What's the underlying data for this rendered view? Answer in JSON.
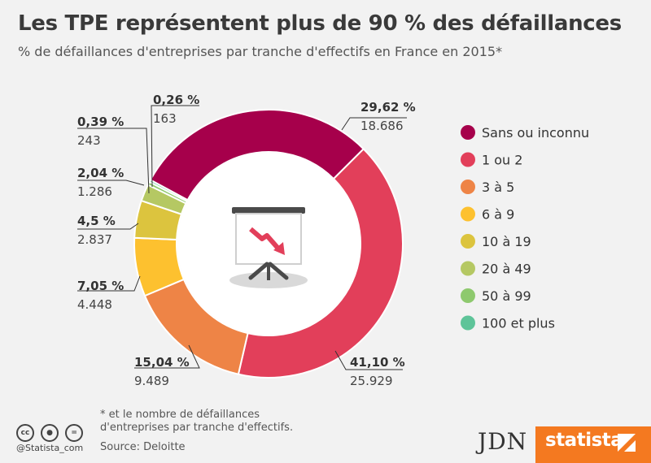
{
  "title": "Les TPE représentent plus de 90 % des défaillances",
  "subtitle": "% de défaillances d'entreprises par tranche d'effectifs en France en 2015*",
  "chart_data": {
    "type": "pie",
    "donut": true,
    "legend_position": "right",
    "series": [
      {
        "name": "Sans ou inconnu",
        "percent": 29.62,
        "percent_label": "29,62 %",
        "count_label": "18.686",
        "color": "#a6004b"
      },
      {
        "name": "1 ou 2",
        "percent": 41.1,
        "percent_label": "41,10 %",
        "count_label": "25.929",
        "color": "#e23f5a"
      },
      {
        "name": "3 à 5",
        "percent": 15.04,
        "percent_label": "15,04 %",
        "count_label": "9.489",
        "color": "#ee8446"
      },
      {
        "name": "6 à 9",
        "percent": 7.05,
        "percent_label": "7,05 %",
        "count_label": "4.448",
        "color": "#fdc12f"
      },
      {
        "name": "10 à 19",
        "percent": 4.5,
        "percent_label": "4,5 %",
        "count_label": "2.837",
        "color": "#dcc43e"
      },
      {
        "name": "20 à 49",
        "percent": 2.04,
        "percent_label": "2,04 %",
        "count_label": "1.286",
        "color": "#b5c863"
      },
      {
        "name": "50 à 99",
        "percent": 0.39,
        "percent_label": "0,39 %",
        "count_label": "243",
        "color": "#8ec96e"
      },
      {
        "name": "100 et plus",
        "percent": 0.26,
        "percent_label": "0,26 %",
        "count_label": "163",
        "color": "#5ec499"
      }
    ]
  },
  "footer": {
    "note_line1": "* et le nombre de défaillances",
    "note_line2": "d'entreprises par tranche d'effectifs.",
    "source": "Source: Deloitte",
    "handle": "@Statista_com",
    "cc_icons": [
      "cc",
      "by",
      "="
    ],
    "jdn_logo": "JDN",
    "statista_logo": "statista"
  }
}
